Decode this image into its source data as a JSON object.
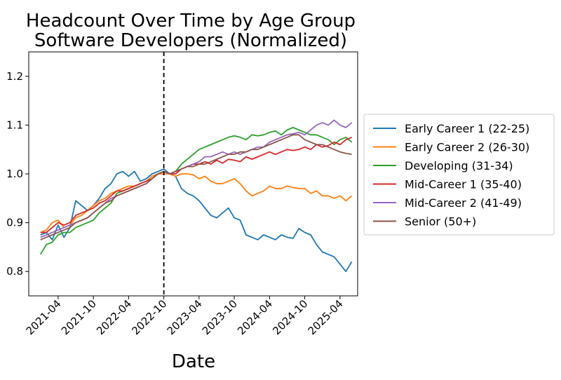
{
  "chart_data": {
    "type": "line",
    "title": "Headcount Over Time by Age Group",
    "subtitle": "Software Developers (Normalized)",
    "xlabel": "Date",
    "ylabel": "",
    "x_ticks": [
      "2021-04",
      "2021-10",
      "2022-04",
      "2022-10",
      "2023-04",
      "2023-10",
      "2024-04",
      "2024-10",
      "2025-04"
    ],
    "y_ticks": [
      "0.8",
      "0.9",
      "1.0",
      "1.1",
      "1.2"
    ],
    "ylim": [
      0.75,
      1.25
    ],
    "xlim": [
      "2020-11",
      "2025-07"
    ],
    "grid": false,
    "legend_position": "right-outside",
    "reference_line": {
      "x": "2022-10",
      "style": "dashed",
      "color": "#000000"
    },
    "x": [
      "2021-01",
      "2021-02",
      "2021-03",
      "2021-04",
      "2021-05",
      "2021-06",
      "2021-07",
      "2021-08",
      "2021-09",
      "2021-10",
      "2021-11",
      "2021-12",
      "2022-01",
      "2022-02",
      "2022-03",
      "2022-04",
      "2022-05",
      "2022-06",
      "2022-07",
      "2022-08",
      "2022-09",
      "2022-10",
      "2022-11",
      "2022-12",
      "2023-01",
      "2023-02",
      "2023-03",
      "2023-04",
      "2023-05",
      "2023-06",
      "2023-07",
      "2023-08",
      "2023-09",
      "2023-10",
      "2023-11",
      "2023-12",
      "2024-01",
      "2024-02",
      "2024-03",
      "2024-04",
      "2024-05",
      "2024-06",
      "2024-07",
      "2024-08",
      "2024-09",
      "2024-10",
      "2024-11",
      "2024-12",
      "2025-01",
      "2025-02",
      "2025-03",
      "2025-04",
      "2025-05",
      "2025-06"
    ],
    "series": [
      {
        "name": "Early Career 1 (22-25)",
        "color": "#1f77b4",
        "values": [
          0.875,
          0.88,
          0.865,
          0.895,
          0.87,
          0.89,
          0.945,
          0.935,
          0.925,
          0.935,
          0.95,
          0.97,
          0.98,
          1.0,
          1.005,
          0.995,
          1.005,
          0.985,
          0.99,
          1.0,
          1.005,
          1.01,
          1.0,
          0.995,
          0.97,
          0.96,
          0.955,
          0.945,
          0.93,
          0.915,
          0.91,
          0.92,
          0.93,
          0.91,
          0.905,
          0.875,
          0.87,
          0.865,
          0.875,
          0.87,
          0.865,
          0.875,
          0.87,
          0.868,
          0.888,
          0.88,
          0.875,
          0.855,
          0.84,
          0.835,
          0.83,
          0.815,
          0.8,
          0.82
        ]
      },
      {
        "name": "Early Career 2 (26-30)",
        "color": "#ff7f0e",
        "values": [
          0.88,
          0.885,
          0.9,
          0.905,
          0.89,
          0.895,
          0.91,
          0.915,
          0.925,
          0.935,
          0.945,
          0.95,
          0.96,
          0.965,
          0.97,
          0.975,
          0.975,
          0.98,
          0.985,
          0.995,
          1.0,
          1.0,
          1.0,
          0.995,
          1.0,
          1.0,
          0.998,
          0.99,
          0.995,
          0.985,
          0.98,
          0.98,
          0.985,
          0.99,
          0.98,
          0.965,
          0.955,
          0.96,
          0.965,
          0.975,
          0.97,
          0.97,
          0.975,
          0.972,
          0.97,
          0.97,
          0.96,
          0.965,
          0.955,
          0.955,
          0.95,
          0.955,
          0.945,
          0.955
        ]
      },
      {
        "name": "Developing (31-34)",
        "color": "#2ca02c",
        "values": [
          0.835,
          0.855,
          0.86,
          0.875,
          0.88,
          0.88,
          0.89,
          0.895,
          0.9,
          0.905,
          0.92,
          0.93,
          0.94,
          0.96,
          0.965,
          0.97,
          0.975,
          0.98,
          0.985,
          0.99,
          1.0,
          1.005,
          1.0,
          1.005,
          1.02,
          1.03,
          1.04,
          1.05,
          1.055,
          1.06,
          1.065,
          1.07,
          1.075,
          1.078,
          1.075,
          1.07,
          1.08,
          1.078,
          1.08,
          1.085,
          1.088,
          1.08,
          1.09,
          1.095,
          1.09,
          1.085,
          1.08,
          1.08,
          1.075,
          1.07,
          1.06,
          1.07,
          1.075,
          1.065
        ]
      },
      {
        "name": "Mid-Career 1 (35-40)",
        "color": "#d62728",
        "values": [
          0.88,
          0.88,
          0.89,
          0.9,
          0.895,
          0.9,
          0.915,
          0.92,
          0.925,
          0.93,
          0.94,
          0.945,
          0.955,
          0.965,
          0.965,
          0.97,
          0.975,
          0.98,
          0.985,
          0.99,
          1.0,
          1.005,
          1.0,
          1.0,
          1.01,
          1.015,
          1.02,
          1.02,
          1.025,
          1.02,
          1.028,
          1.022,
          1.03,
          1.028,
          1.025,
          1.035,
          1.03,
          1.035,
          1.04,
          1.045,
          1.04,
          1.045,
          1.05,
          1.048,
          1.05,
          1.055,
          1.05,
          1.06,
          1.055,
          1.058,
          1.065,
          1.06,
          1.07,
          1.075
        ]
      },
      {
        "name": "Mid-Career 2 (41-49)",
        "color": "#9467bd",
        "values": [
          0.87,
          0.875,
          0.88,
          0.885,
          0.89,
          0.895,
          0.9,
          0.905,
          0.91,
          0.92,
          0.93,
          0.94,
          0.95,
          0.955,
          0.96,
          0.965,
          0.97,
          0.975,
          0.98,
          0.99,
          1.0,
          1.005,
          1.0,
          1.005,
          1.01,
          1.015,
          1.02,
          1.025,
          1.035,
          1.035,
          1.04,
          1.045,
          1.04,
          1.045,
          1.04,
          1.045,
          1.05,
          1.055,
          1.055,
          1.065,
          1.07,
          1.075,
          1.08,
          1.082,
          1.085,
          1.08,
          1.09,
          1.1,
          1.105,
          1.1,
          1.11,
          1.1,
          1.095,
          1.105
        ]
      },
      {
        "name": "Senior (50+)",
        "color": "#8c564b",
        "values": [
          0.865,
          0.87,
          0.875,
          0.88,
          0.885,
          0.89,
          0.9,
          0.905,
          0.91,
          0.92,
          0.93,
          0.94,
          0.945,
          0.955,
          0.96,
          0.965,
          0.97,
          0.975,
          0.98,
          0.99,
          1.0,
          1.005,
          1.0,
          1.005,
          1.01,
          1.015,
          1.015,
          1.02,
          1.02,
          1.025,
          1.03,
          1.035,
          1.04,
          1.04,
          1.045,
          1.045,
          1.05,
          1.05,
          1.055,
          1.06,
          1.065,
          1.07,
          1.075,
          1.08,
          1.08,
          1.07,
          1.065,
          1.06,
          1.06,
          1.055,
          1.05,
          1.045,
          1.042,
          1.04
        ]
      }
    ]
  }
}
